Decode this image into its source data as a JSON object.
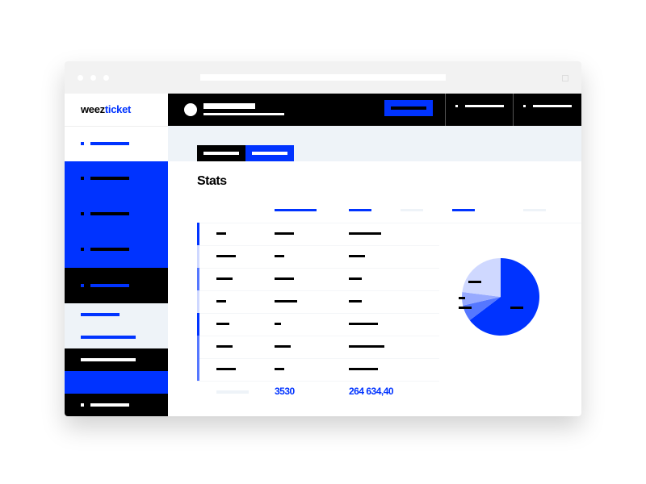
{
  "logo": {
    "brand_part1": "weez",
    "brand_part2": "ticket"
  },
  "page_title": "Stats",
  "table": {
    "totals": {
      "count": "3530",
      "amount": "264 634,40"
    }
  },
  "colors": {
    "accent": "#0033ff",
    "dark": "#000000",
    "light": "#eef3f8"
  },
  "pie": {
    "slices_percent": [
      64.7,
      6.7,
      5.6,
      23.0
    ],
    "slice_colors": [
      "#0033ff",
      "#5577ff",
      "#97aaff",
      "#cfd8ff"
    ]
  }
}
